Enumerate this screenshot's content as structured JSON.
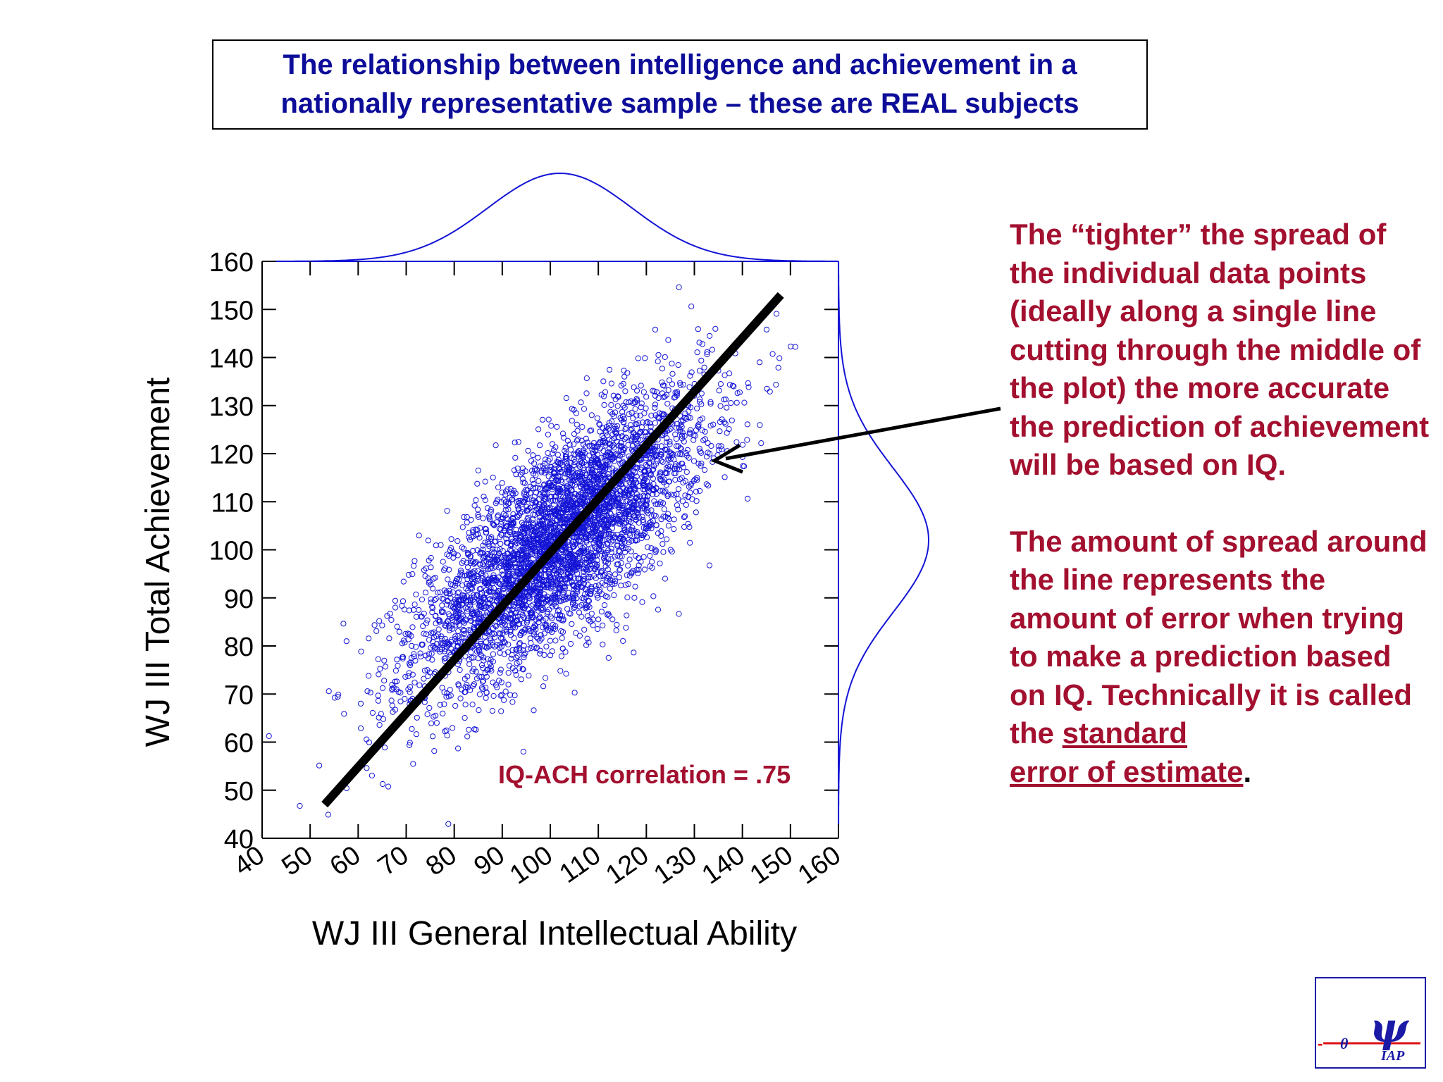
{
  "title": {
    "line1": "The relationship between intelligence and achievement in a",
    "line2": "nationally representative sample – these are REAL subjects"
  },
  "annotation": {
    "para1": "The “tighter” the spread of the individual data points (ideally along a single line cutting through the middle of the plot) the more accurate the prediction of achievement will be based on IQ.",
    "para2_text": "The amount of spread around the line represents the amount of error when trying to make a prediction based on IQ.  Technically it is called the ",
    "para2_term_a": "standard",
    "para2_term_b": "error of estimate",
    "para2_end": "."
  },
  "logo": {
    "symbol": "ψ",
    "theta": "θ",
    "text": "IAP",
    "dash": "-"
  },
  "chart_data": {
    "type": "scatter",
    "xlabel": "WJ III General Intellectual Ability",
    "ylabel": "WJ III Total Achievement",
    "xlim": [
      40,
      160
    ],
    "ylim": [
      40,
      160
    ],
    "xticks": [
      40,
      50,
      60,
      70,
      80,
      90,
      100,
      110,
      120,
      130,
      140,
      150,
      160
    ],
    "yticks": [
      40,
      50,
      60,
      70,
      80,
      90,
      100,
      110,
      120,
      130,
      140,
      150,
      160
    ],
    "tick_labels": {
      "x": [
        "40",
        "50",
        "60",
        "70",
        "80",
        "90",
        "100",
        "110",
        "120",
        "130",
        "140",
        "150",
        "160"
      ],
      "y": [
        "40",
        "50",
        "60",
        "70",
        "80",
        "90",
        "100",
        "110",
        "120",
        "130",
        "140",
        "150",
        "160"
      ]
    },
    "annotation": "IQ-ACH correlation = .75",
    "correlation": 0.75,
    "x_mean": 102,
    "y_mean": 102,
    "sd": 15,
    "regression_line": {
      "x": [
        53,
        148
      ],
      "y": [
        47,
        153
      ]
    },
    "marginal_density_x": {
      "mean": 102,
      "sd": 15
    },
    "marginal_density_y": {
      "mean": 102,
      "sd": 15
    },
    "point_color": "#1414d6",
    "line_color": "#000000",
    "density_color": "#1414d6",
    "grid": false
  }
}
